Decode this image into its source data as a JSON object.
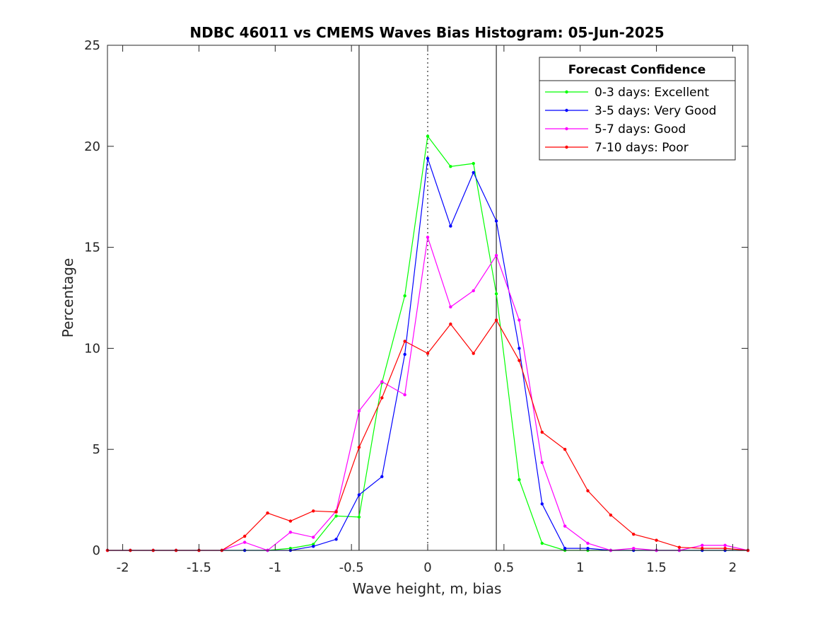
{
  "chart_data": {
    "type": "line",
    "title": "NDBC 46011 vs CMEMS Waves Bias Histogram: 05-Jun-2025",
    "xlabel": "Wave height, m, bias",
    "ylabel": "Percentage",
    "xlim": [
      -2.1,
      2.1
    ],
    "ylim": [
      0,
      25
    ],
    "xticks": [
      -2,
      -1.5,
      -1,
      -0.5,
      0,
      0.5,
      1,
      1.5,
      2
    ],
    "xtick_labels": [
      "-2",
      "-1.5",
      "-1",
      "-0.5",
      "0",
      "0.5",
      "1",
      "1.5",
      "2"
    ],
    "yticks": [
      0,
      5,
      10,
      15,
      20,
      25
    ],
    "ytick_labels": [
      "0",
      "5",
      "10",
      "15",
      "20",
      "25"
    ],
    "grid": false,
    "vertical_lines": [
      {
        "x": -0.45,
        "style": "solid"
      },
      {
        "x": 0,
        "style": "dotted"
      },
      {
        "x": 0.45,
        "style": "solid"
      }
    ],
    "legend": {
      "title": "Forecast Confidence",
      "placement": "top-right"
    },
    "x": [
      -2.1,
      -1.95,
      -1.8,
      -1.65,
      -1.5,
      -1.35,
      -1.2,
      -1.05,
      -0.9,
      -0.75,
      -0.6,
      -0.45,
      -0.3,
      -0.15,
      0,
      0.15,
      0.3,
      0.45,
      0.6,
      0.75,
      0.9,
      1.05,
      1.2,
      1.35,
      1.5,
      1.65,
      1.8,
      1.95,
      2.1
    ],
    "series": [
      {
        "name": "0-3 days: Excellent",
        "color": "#00ff00",
        "values": [
          0,
          0,
          0,
          0,
          0,
          0,
          0,
          0,
          0.1,
          0.3,
          1.7,
          1.65,
          8.3,
          12.6,
          20.5,
          19.0,
          19.15,
          12.7,
          3.5,
          0.35,
          0.0,
          0.0,
          0,
          0,
          0,
          0,
          0,
          0,
          0
        ]
      },
      {
        "name": "3-5 days: Very Good",
        "color": "#0000ff",
        "values": [
          0,
          0,
          0,
          0,
          0,
          0,
          0,
          0,
          0,
          0.2,
          0.55,
          2.75,
          3.65,
          9.7,
          19.4,
          16.05,
          18.7,
          16.3,
          10.0,
          2.3,
          0.1,
          0.1,
          0,
          0,
          0,
          0,
          0,
          0,
          0
        ]
      },
      {
        "name": "5-7 days: Good",
        "color": "#ff00ff",
        "values": [
          0,
          0,
          0,
          0,
          0,
          0,
          0.4,
          0,
          0.9,
          0.65,
          1.95,
          6.9,
          8.35,
          7.7,
          15.5,
          12.05,
          12.85,
          14.6,
          11.4,
          4.35,
          1.2,
          0.35,
          0,
          0.1,
          0,
          0,
          0.25,
          0.25,
          0
        ]
      },
      {
        "name": "7-10 days: Poor",
        "color": "#ff0000",
        "values": [
          0,
          0,
          0,
          0,
          0,
          0,
          0.7,
          1.85,
          1.45,
          1.95,
          1.9,
          5.1,
          7.55,
          10.35,
          9.75,
          11.2,
          9.75,
          11.4,
          9.4,
          5.85,
          5.0,
          2.95,
          1.75,
          0.8,
          0.5,
          0.15,
          0.1,
          0.1,
          0
        ]
      }
    ]
  }
}
